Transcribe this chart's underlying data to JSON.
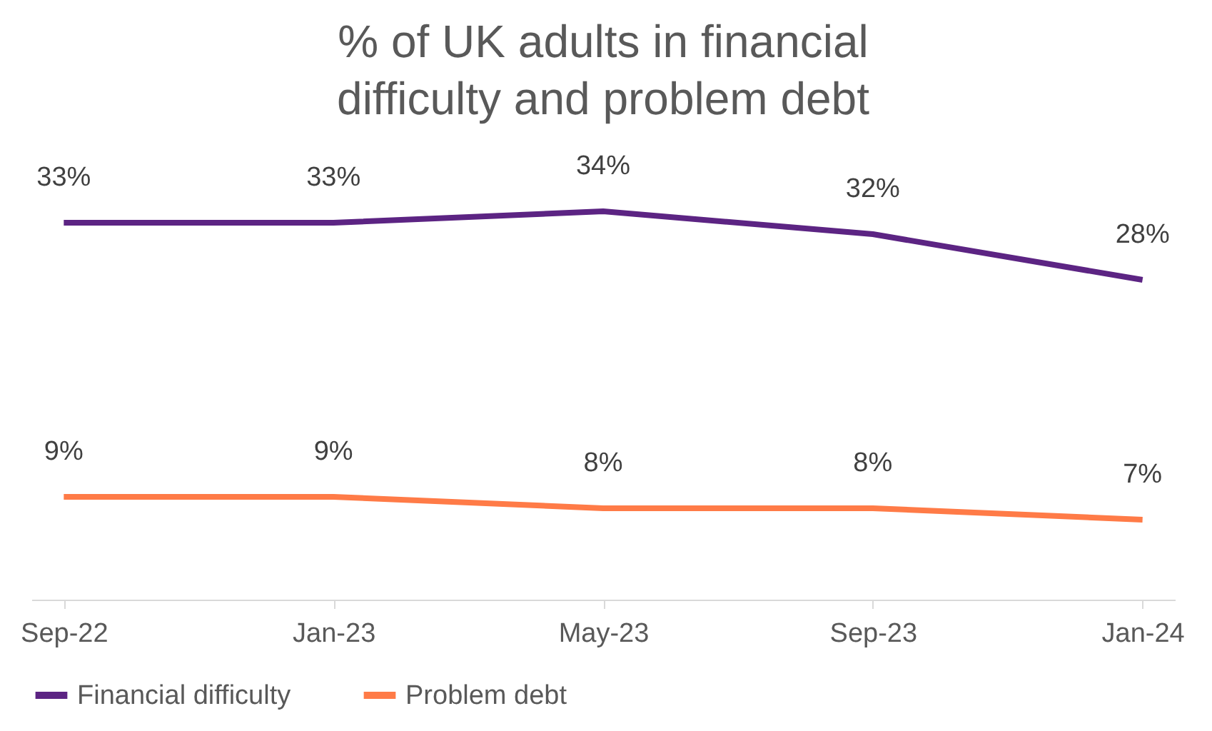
{
  "chart_data": {
    "type": "line",
    "title": "% of UK adults in financial difficulty and problem debt",
    "categories": [
      "Sep-22",
      "Jan-23",
      "May-23",
      "Sep-23",
      "Jan-24"
    ],
    "series": [
      {
        "name": "Financial difficulty",
        "color": "#5c2483",
        "values": [
          33,
          33,
          34,
          32,
          28
        ],
        "value_labels": [
          "33%",
          "33%",
          "34%",
          "32%",
          "28%"
        ]
      },
      {
        "name": "Problem debt",
        "color": "#ff7b47",
        "values": [
          9,
          9,
          8,
          8,
          7
        ],
        "value_labels": [
          "9%",
          "9%",
          "8%",
          "8%",
          "7%"
        ]
      }
    ],
    "grid": false,
    "legend": "bottom",
    "marker": "none",
    "line_style": "solid"
  }
}
